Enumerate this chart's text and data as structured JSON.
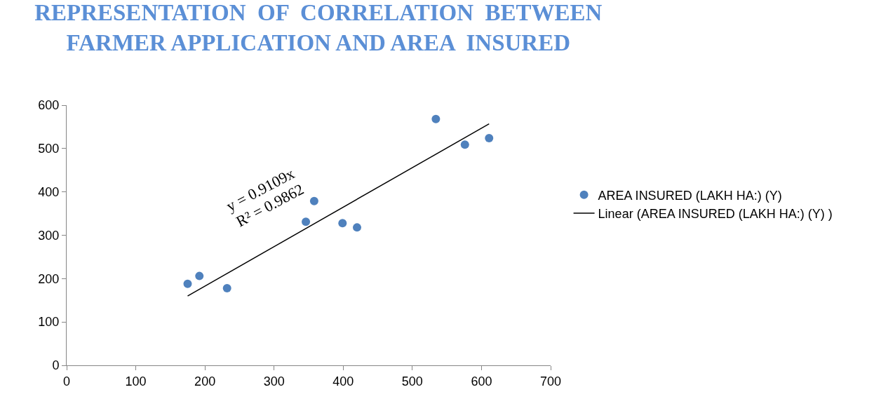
{
  "chart_data": {
    "type": "scatter",
    "title": "REPRESENTATION  OF  CORRELATION  BETWEEN\nFARMER APPLICATION AND AREA  INSURED",
    "series": [
      {
        "name": "AREA INSURED (LAKH HA:) (Y)",
        "color": "#4f81bd",
        "marker": "circle",
        "x": [
          175,
          192,
          232,
          346,
          358,
          399,
          420,
          534,
          576,
          611
        ],
        "values": [
          188,
          206,
          178,
          331,
          379,
          328,
          318,
          568,
          509,
          524
        ]
      },
      {
        "name": "Linear (AREA INSURED (LAKH HA:) (Y) )",
        "type": "line",
        "color": "#000000",
        "marker": "none",
        "line_style": "solid",
        "x": [
          175,
          611
        ],
        "values": [
          160,
          557
        ]
      }
    ],
    "annotations": [
      "y = 0.9109x",
      "R² = 0.9862"
    ],
    "xlim": [
      0,
      700
    ],
    "xticks": [
      0,
      100,
      200,
      300,
      400,
      500,
      600,
      700
    ],
    "ylim": [
      0,
      600
    ],
    "yticks": [
      0,
      100,
      200,
      300,
      400,
      500,
      600
    ],
    "grid": false,
    "legend": "right"
  }
}
